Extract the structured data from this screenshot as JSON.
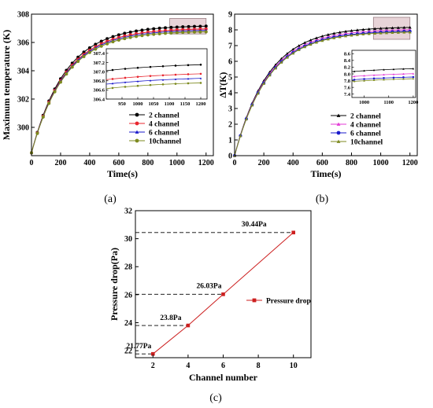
{
  "chart_data": [
    {
      "type": "line",
      "caption": "(a)",
      "xlabel": "Time(s)",
      "ylabel": "Maximum temperature (K)",
      "xlim": [
        0,
        1250
      ],
      "ylim": [
        298,
        308
      ],
      "xticks": [
        0,
        200,
        400,
        600,
        800,
        1000,
        1200
      ],
      "yticks": [
        300,
        302,
        304,
        306,
        308
      ],
      "legend_position": "bottom-right",
      "model": {
        "start": 298.2,
        "tau": 230
      },
      "series": [
        {
          "name": "2 channel",
          "color": "#000000",
          "marker": "circle",
          "final": 307.2
        },
        {
          "name": "4 channel",
          "color": "#e8262f",
          "marker": "circle",
          "final": 307.0
        },
        {
          "name": "6 channel",
          "color": "#1a1acb",
          "marker": "triangle",
          "final": 306.9
        },
        {
          "name": "10channel",
          "color": "#7d8a1f",
          "marker": "circle",
          "final": 306.8
        }
      ],
      "inset": {
        "xlim": [
          900,
          1220
        ],
        "ylim": [
          306.4,
          307.5
        ],
        "xticks": [
          950,
          1000,
          1050,
          1100,
          1150,
          1200
        ],
        "yticks": [
          306.4,
          306.6,
          306.8,
          307.0,
          307.2,
          307.4
        ]
      }
    },
    {
      "type": "line",
      "caption": "(b)",
      "xlabel": "Time(s)",
      "ylabel": "ΔT(K)",
      "xlim": [
        0,
        1250
      ],
      "ylim": [
        0,
        9
      ],
      "xticks": [
        0,
        200,
        400,
        600,
        800,
        1000,
        1200
      ],
      "yticks": [
        0,
        1,
        2,
        3,
        4,
        5,
        6,
        7,
        8,
        9
      ],
      "legend_position": "bottom-right",
      "model": {
        "start": 0,
        "tau": 230
      },
      "series": [
        {
          "name": "2 channel",
          "color": "#000000",
          "marker": "triangle",
          "final": 8.2
        },
        {
          "name": "4 channel",
          "color": "#e33ad6",
          "marker": "triangle",
          "final": 8.05
        },
        {
          "name": "6 channel",
          "color": "#1a1acb",
          "marker": "circle",
          "final": 7.95
        },
        {
          "name": "10channel",
          "color": "#7d8a1f",
          "marker": "triangle",
          "final": 7.9
        }
      ],
      "inset": {
        "xlim": [
          950,
          1210
        ],
        "ylim": [
          7.3,
          8.7
        ],
        "xticks": [
          1000,
          1100,
          1200
        ],
        "yticks": [
          7.4,
          7.6,
          7.8,
          8.0,
          8.2,
          8.4,
          8.6
        ]
      }
    },
    {
      "type": "line",
      "caption": "(c)",
      "xlabel": "Channel number",
      "ylabel": "Pressure drop(Pa)",
      "xlim": [
        1,
        11
      ],
      "ylim": [
        21.5,
        32
      ],
      "xticks": [
        2,
        4,
        6,
        8,
        10
      ],
      "yticks": [
        22,
        24,
        26,
        28,
        30,
        32
      ],
      "legend_position": "right",
      "series": [
        {
          "name": "Pressure drop",
          "color": "#cc1f1f",
          "marker": "square"
        }
      ],
      "x": [
        2,
        4,
        6,
        10
      ],
      "y": [
        21.77,
        23.8,
        26.03,
        30.44
      ],
      "annotations": [
        "21.77Pa",
        "23.8Pa",
        "26.03Pa",
        "30.44Pa"
      ]
    }
  ]
}
